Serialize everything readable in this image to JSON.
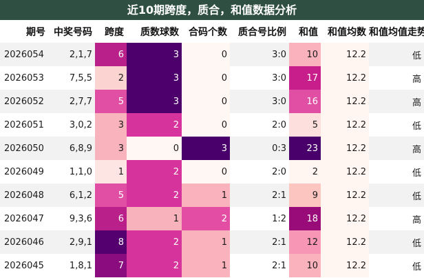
{
  "title": "近10期跨度，质合，和值数据分析",
  "headers": [
    "期号",
    "中奖号码",
    "跨度",
    "质数球数",
    "合码个数",
    "质合号比例",
    "和值",
    "和值均数",
    "和值均值走势"
  ],
  "rows": [
    {
      "period": "2026054",
      "numbers": "2,1,7",
      "span": "6",
      "primes": "3",
      "composites": "0",
      "ratio": "3:0",
      "sum": "10",
      "avg": "12.2",
      "trend": "低"
    },
    {
      "period": "2026053",
      "numbers": "7,5,5",
      "span": "2",
      "primes": "3",
      "composites": "0",
      "ratio": "3:0",
      "sum": "17",
      "avg": "12.2",
      "trend": "高"
    },
    {
      "period": "2026052",
      "numbers": "2,7,7",
      "span": "5",
      "primes": "3",
      "composites": "0",
      "ratio": "3:0",
      "sum": "16",
      "avg": "12.2",
      "trend": "高"
    },
    {
      "period": "2026051",
      "numbers": "3,0,2",
      "span": "3",
      "primes": "2",
      "composites": "0",
      "ratio": "2:0",
      "sum": "5",
      "avg": "12.2",
      "trend": "低"
    },
    {
      "period": "2026050",
      "numbers": "6,8,9",
      "span": "3",
      "primes": "0",
      "composites": "3",
      "ratio": "0:3",
      "sum": "23",
      "avg": "12.2",
      "trend": "高"
    },
    {
      "period": "2026049",
      "numbers": "1,1,0",
      "span": "1",
      "primes": "2",
      "composites": "0",
      "ratio": "2:0",
      "sum": "2",
      "avg": "12.2",
      "trend": "低"
    },
    {
      "period": "2026048",
      "numbers": "6,1,2",
      "span": "5",
      "primes": "2",
      "composites": "1",
      "ratio": "2:1",
      "sum": "9",
      "avg": "12.2",
      "trend": "低"
    },
    {
      "period": "2026047",
      "numbers": "9,3,6",
      "span": "6",
      "primes": "1",
      "composites": "2",
      "ratio": "1:2",
      "sum": "18",
      "avg": "12.2",
      "trend": "高"
    },
    {
      "period": "2026046",
      "numbers": "2,9,1",
      "span": "8",
      "primes": "2",
      "composites": "1",
      "ratio": "2:1",
      "sum": "12",
      "avg": "12.2",
      "trend": "低"
    },
    {
      "period": "2026045",
      "numbers": "1,8,1",
      "span": "7",
      "primes": "2",
      "composites": "1",
      "ratio": "2:1",
      "sum": "10",
      "avg": "12.2",
      "trend": "低"
    }
  ],
  "colors": {
    "title_bg": "#2f4f42",
    "row_alt_bg": "#f2f2f2",
    "span_scale": {
      "1": "#fde5e3",
      "2": "#fbd3d1",
      "3": "#f8b3bc",
      "5": "#e14fa4",
      "6": "#b9208a",
      "7": "#8a0c7e",
      "8": "#54006f"
    },
    "primes_scale": {
      "0": "#fff7f3",
      "1": "#f8b2bc",
      "2": "#d7339d",
      "3": "#4d006b"
    },
    "composites_scale": {
      "0": "#fff7f3",
      "1": "#fab2bd",
      "2": "#e34ea4",
      "3": "#4a006a"
    },
    "sum_scale": {
      "2": "#fff5f1",
      "5": "#fde0dd",
      "9": "#fcc5c0",
      "10": "#fab2bd",
      "12": "#f896b6",
      "16": "#e14fa4",
      "17": "#c81e8c",
      "18": "#990b78",
      "23": "#49006a"
    },
    "avg_bg": "#fff5f1"
  }
}
